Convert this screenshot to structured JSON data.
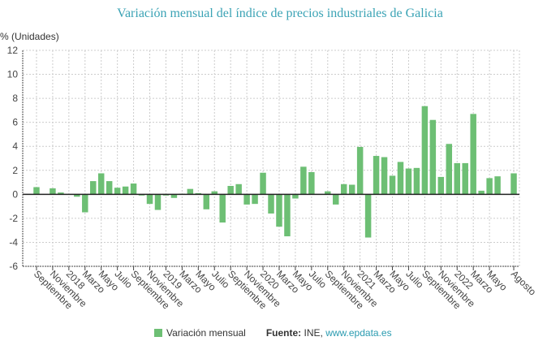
{
  "chart_data": {
    "type": "bar",
    "title": "Variación mensual del índice de precios industriales de Galicia",
    "ylabel": "% (Unidades)",
    "ylim": [
      -6,
      12
    ],
    "yticks": [
      12,
      10,
      8,
      6,
      4,
      2,
      0,
      -2,
      -4,
      -6
    ],
    "grid": true,
    "legend_position": "bottom",
    "bar_color": "#6dbf74",
    "x_tick_labels": [
      {
        "month_index": 0,
        "label": "Septiembre"
      },
      {
        "month_index": 2,
        "label": "Noviembre"
      },
      {
        "month_index": 4,
        "label": "2018"
      },
      {
        "month_index": 6,
        "label": "Marzo"
      },
      {
        "month_index": 8,
        "label": "Mayo"
      },
      {
        "month_index": 10,
        "label": "Julio"
      },
      {
        "month_index": 12,
        "label": "Septiembre"
      },
      {
        "month_index": 14,
        "label": "Noviembre"
      },
      {
        "month_index": 16,
        "label": "2019"
      },
      {
        "month_index": 18,
        "label": "Marzo"
      },
      {
        "month_index": 20,
        "label": "Mayo"
      },
      {
        "month_index": 22,
        "label": "Julio"
      },
      {
        "month_index": 24,
        "label": "Septiembre"
      },
      {
        "month_index": 26,
        "label": "Noviembre"
      },
      {
        "month_index": 28,
        "label": "2020"
      },
      {
        "month_index": 30,
        "label": "Marzo"
      },
      {
        "month_index": 32,
        "label": "Mayo"
      },
      {
        "month_index": 34,
        "label": "Julio"
      },
      {
        "month_index": 36,
        "label": "Septiembre"
      },
      {
        "month_index": 38,
        "label": "Noviembre"
      },
      {
        "month_index": 40,
        "label": "2021"
      },
      {
        "month_index": 42,
        "label": "Marzo"
      },
      {
        "month_index": 44,
        "label": "Mayo"
      },
      {
        "month_index": 46,
        "label": "Julio"
      },
      {
        "month_index": 48,
        "label": "Septiembre"
      },
      {
        "month_index": 50,
        "label": "Noviembre"
      },
      {
        "month_index": 52,
        "label": "2022"
      },
      {
        "month_index": 54,
        "label": "Marzo"
      },
      {
        "month_index": 56,
        "label": "Mayo"
      },
      {
        "month_index": 59,
        "label": "Agosto"
      }
    ],
    "series": [
      {
        "name": "Variación mensual",
        "values": [
          0.6,
          0,
          0.5,
          0.15,
          0,
          -0.2,
          -1.5,
          1.1,
          1.75,
          1.1,
          0.55,
          0.65,
          0.9,
          -0.1,
          -0.8,
          -1.3,
          -0.1,
          -0.3,
          0.05,
          0.45,
          0.1,
          -1.25,
          0.25,
          -2.35,
          0.7,
          0.85,
          -0.85,
          -0.8,
          1.8,
          -1.6,
          -2.7,
          -3.5,
          -0.35,
          2.3,
          1.85,
          0,
          0.25,
          -0.85,
          0.85,
          0.8,
          3.95,
          -3.6,
          3.2,
          3.1,
          1.55,
          2.7,
          2.15,
          2.2,
          7.35,
          6.2,
          1.45,
          4.2,
          2.6,
          2.6,
          6.7,
          0.3,
          1.35,
          1.5,
          0,
          1.75
        ]
      }
    ]
  },
  "legend": {
    "series_label": "Variación mensual"
  },
  "source": {
    "label": "Fuente:",
    "org": "INE,",
    "link": "www.epdata.es"
  }
}
